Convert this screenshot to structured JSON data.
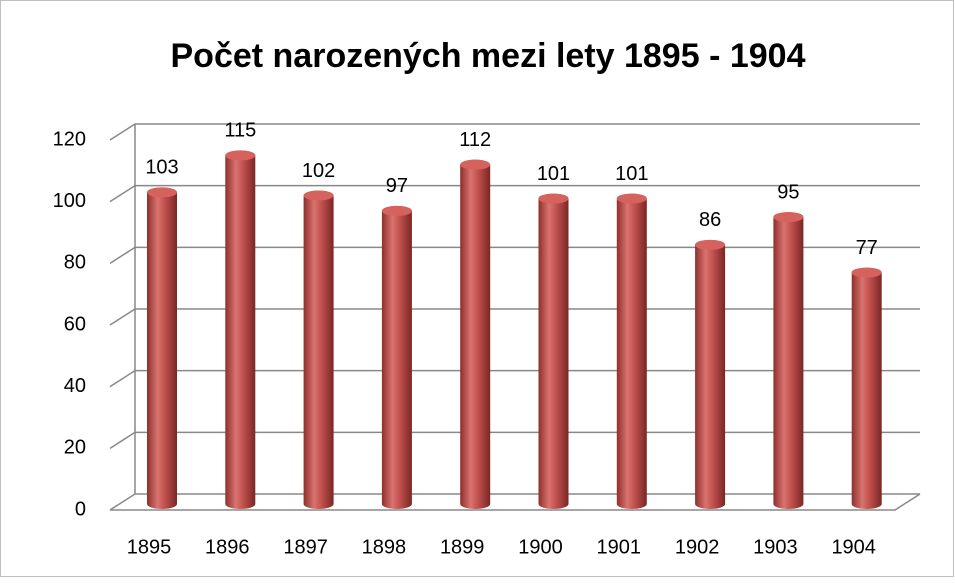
{
  "chart_data": {
    "type": "bar",
    "title": "Počet narozených mezi lety 1895 - 1904",
    "categories": [
      "1895",
      "1896",
      "1897",
      "1898",
      "1899",
      "1900",
      "1901",
      "1902",
      "1903",
      "1904"
    ],
    "values": [
      103,
      115,
      102,
      97,
      112,
      101,
      101,
      86,
      95,
      77
    ],
    "color": "#c0504d",
    "ylim": [
      0,
      120
    ],
    "yticks": [
      0,
      20,
      40,
      60,
      80,
      100,
      120
    ],
    "grid": true
  }
}
